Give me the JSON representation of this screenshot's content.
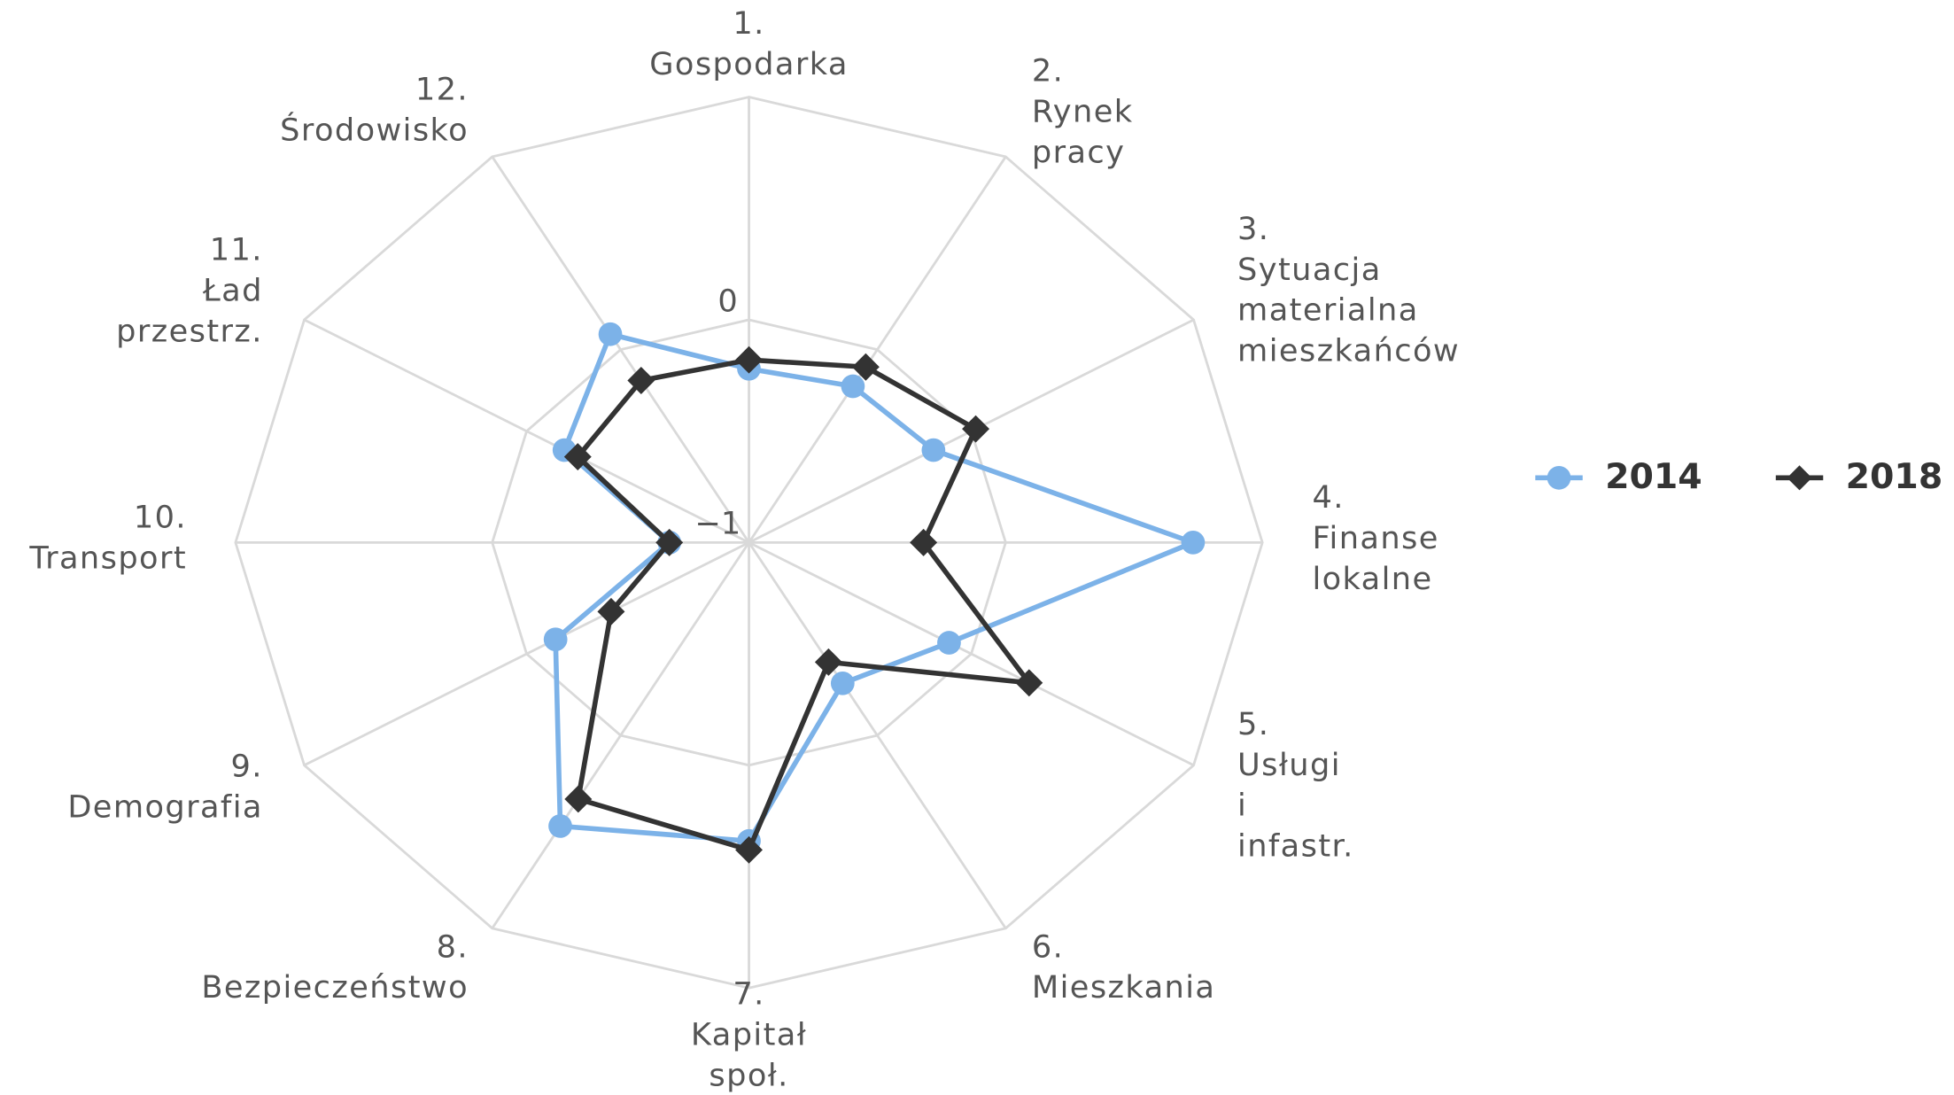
{
  "chart_data": {
    "type": "radar",
    "categories": [
      [
        "1.",
        "Gospodarka"
      ],
      [
        "2.",
        "Rynek",
        "pracy"
      ],
      [
        "3.",
        "Sytuacja",
        "materialna",
        "mieszkańców"
      ],
      [
        "4.",
        "Finanse",
        "lokalne"
      ],
      [
        "5.",
        "Usługi",
        "i",
        "infastr."
      ],
      [
        "6.",
        "Mieszkania"
      ],
      [
        "7.",
        "Kapitał",
        "społ."
      ],
      [
        "8.",
        "Bezpieczeństwo"
      ],
      [
        "9.",
        "Demografia"
      ],
      [
        "10.",
        "Transport"
      ],
      [
        "11.",
        "Ład",
        "przestrz."
      ],
      [
        "12.",
        "Środowisko"
      ]
    ],
    "series": [
      {
        "name": "2014",
        "color": "#7cb2e8",
        "marker": "circle",
        "values": [
          -0.22,
          -0.19,
          -0.17,
          0.73,
          -0.1,
          -0.27,
          0.34,
          0.47,
          -0.13,
          -0.69,
          -0.17,
          0.08
        ]
      },
      {
        "name": "2018",
        "color": "#333333",
        "marker": "diamond",
        "values": [
          -0.18,
          -0.09,
          0.02,
          -0.32,
          0.26,
          -0.38,
          0.38,
          0.33,
          -0.38,
          -0.69,
          -0.23,
          -0.16
        ]
      }
    ],
    "ylim": [
      -1,
      1
    ],
    "yticks": [
      {
        "value": -1,
        "label": "−1"
      },
      0
    ],
    "grid": true,
    "legend": "right"
  }
}
